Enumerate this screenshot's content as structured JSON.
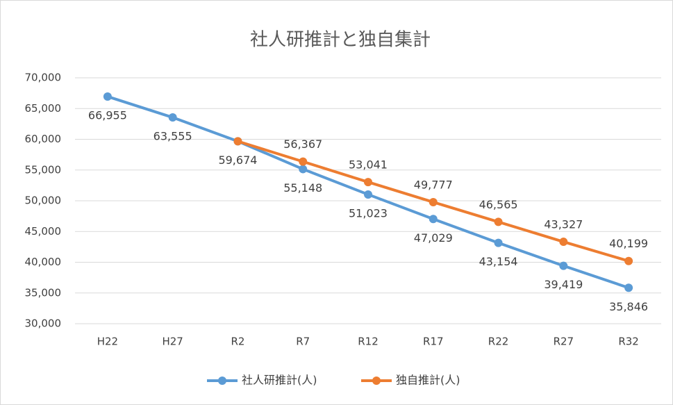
{
  "chart_data": {
    "type": "line",
    "title": "社人研推計と独自集計",
    "categories": [
      "H22",
      "H27",
      "R2",
      "R7",
      "R12",
      "R17",
      "R22",
      "R27",
      "R32"
    ],
    "series": [
      {
        "name": "社人研推計(人)",
        "color": "#5b9bd5",
        "values": [
          66955,
          63555,
          59674,
          55148,
          51023,
          47029,
          43154,
          39419,
          35846
        ],
        "value_labels": [
          "66,955",
          "63,555",
          "59,674",
          "55,148",
          "51,023",
          "47,029",
          "43,154",
          "39,419",
          "35,846"
        ]
      },
      {
        "name": "独自推計(人)",
        "color": "#ed7d31",
        "values": [
          null,
          null,
          59674,
          56367,
          53041,
          49777,
          46565,
          43327,
          40199
        ],
        "value_labels": [
          null,
          null,
          null,
          "56,367",
          "53,041",
          "49,777",
          "46,565",
          "43,327",
          "40,199"
        ]
      }
    ],
    "ylim": [
      30000,
      70000
    ],
    "yticks": [
      {
        "value": 30000,
        "label": "30,000"
      },
      {
        "value": 35000,
        "label": "35,000"
      },
      {
        "value": 40000,
        "label": "40,000"
      },
      {
        "value": 45000,
        "label": "45,000"
      },
      {
        "value": 50000,
        "label": "50,000"
      },
      {
        "value": 55000,
        "label": "55,000"
      },
      {
        "value": 60000,
        "label": "60,000"
      },
      {
        "value": 65000,
        "label": "65,000"
      },
      {
        "value": 70000,
        "label": "70,000"
      }
    ],
    "grid": true
  }
}
